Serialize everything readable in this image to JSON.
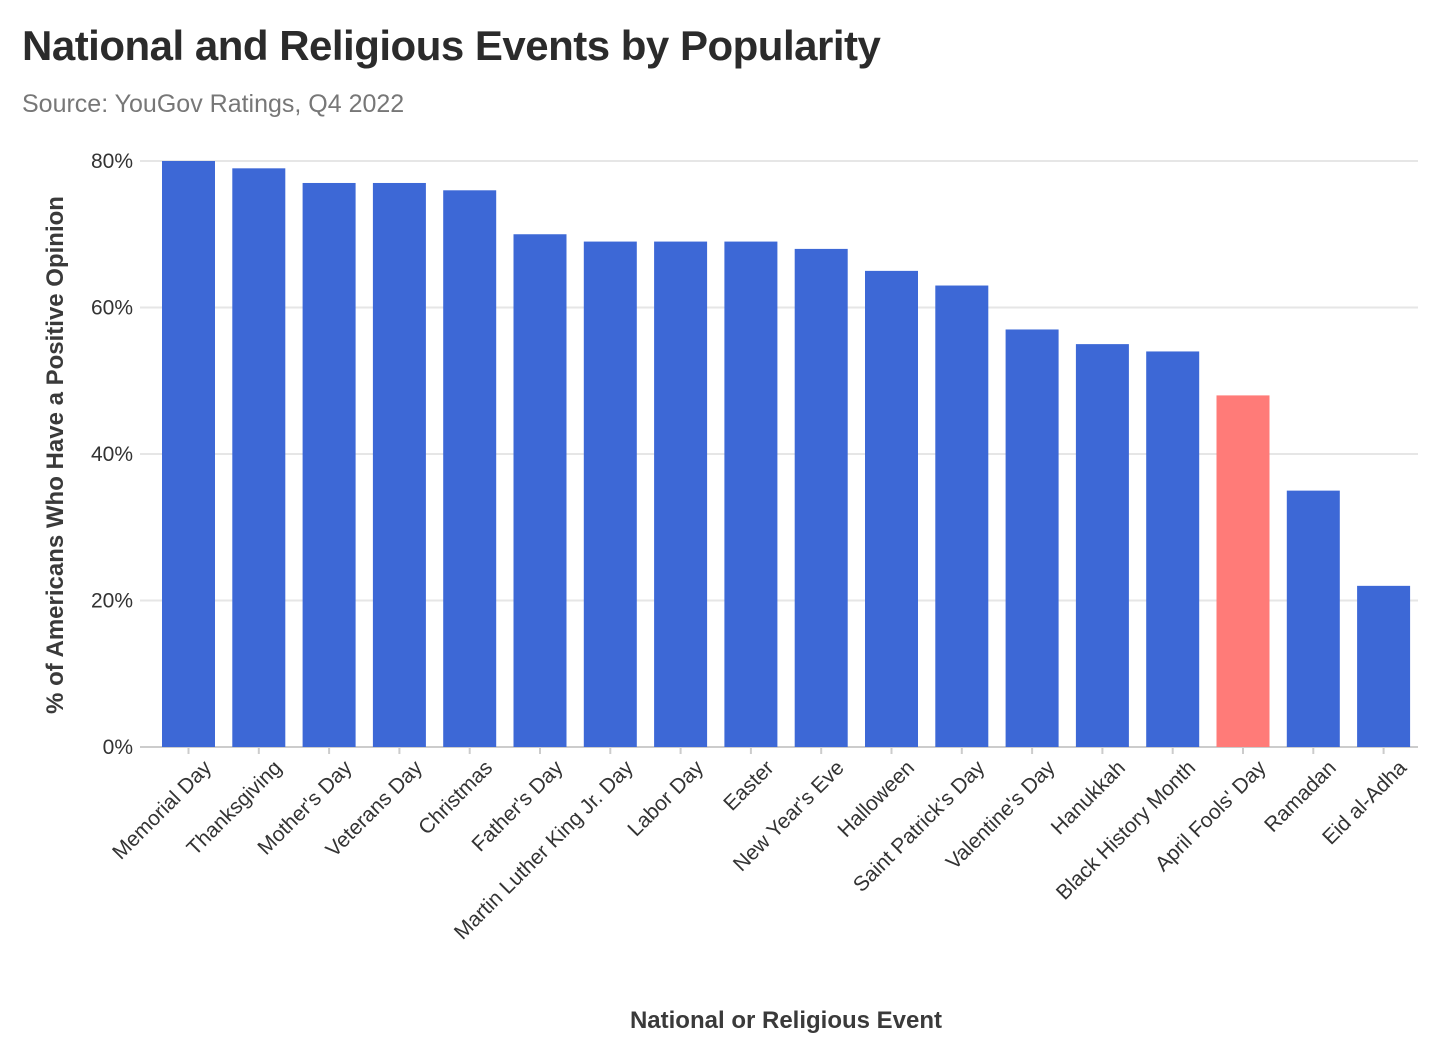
{
  "header": {
    "title": "National and Religious Events by Popularity",
    "subtitle": "Source: YouGov Ratings, Q4 2022"
  },
  "colors": {
    "bar_default": "#3d68d6",
    "bar_highlight": "#ff7b78",
    "grid": "#e6e6e6",
    "axis": "#cccccc"
  },
  "chart_data": {
    "type": "bar",
    "title": "National and Religious Events by Popularity",
    "subtitle": "Source: YouGov Ratings, Q4 2022",
    "xlabel": "National or Religious Event",
    "ylabel": "% of Americans Who Have a Positive Opinion",
    "ylim": [
      0,
      80
    ],
    "yticks": [
      "0%",
      "20%",
      "40%",
      "60%",
      "80%"
    ],
    "grid": true,
    "categories": [
      "Memorial Day",
      "Thanksgiving",
      "Mother's Day",
      "Veterans Day",
      "Christmas",
      "Father's Day",
      "Martin Luther King Jr. Day",
      "Labor Day",
      "Easter",
      "New Year's Eve",
      "Halloween",
      "Saint Patrick's Day",
      "Valentine's Day",
      "Hanukkah",
      "Black History Month",
      "April Fools' Day",
      "Ramadan",
      "Eid al-Adha"
    ],
    "values": [
      80,
      79,
      77,
      77,
      76,
      70,
      69,
      69,
      69,
      68,
      65,
      63,
      57,
      55,
      54,
      48,
      35,
      22
    ],
    "highlight": [
      "April Fools' Day"
    ]
  }
}
